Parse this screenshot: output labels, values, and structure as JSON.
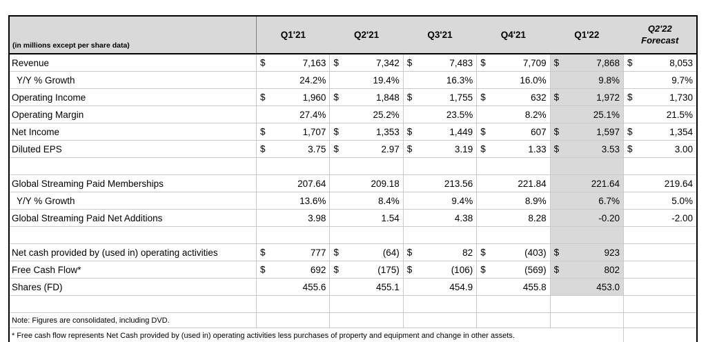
{
  "table": {
    "corner_label": "(in millions except per share data)",
    "currency_symbol": "$",
    "highlight_column_index": 4,
    "colors": {
      "header_bg": "#d9d9d9",
      "highlight_bg": "#d9d9d9",
      "grid_line": "#c9c9c9",
      "outer_border": "#000000"
    },
    "columns": [
      {
        "label": "Q1'21"
      },
      {
        "label": "Q2'21"
      },
      {
        "label": "Q3'21"
      },
      {
        "label": "Q4'21"
      },
      {
        "label": "Q1'22"
      },
      {
        "label": "Q2'22",
        "sublabel": "Forecast",
        "italic": true
      }
    ],
    "rows": [
      {
        "label": "Revenue",
        "type": "currency",
        "values": [
          "7,163",
          "7,342",
          "7,483",
          "7,709",
          "7,868",
          "8,053"
        ]
      },
      {
        "label": "Y/Y % Growth",
        "indent": true,
        "type": "plain",
        "values": [
          "24.2%",
          "19.4%",
          "16.3%",
          "16.0%",
          "9.8%",
          "9.7%"
        ]
      },
      {
        "label": "Operating Income",
        "type": "currency",
        "values": [
          "1,960",
          "1,848",
          "1,755",
          "632",
          "1,972",
          "1,730"
        ]
      },
      {
        "label": "Operating Margin",
        "type": "plain",
        "values": [
          "27.4%",
          "25.2%",
          "23.5%",
          "8.2%",
          "25.1%",
          "21.5%"
        ]
      },
      {
        "label": "Net Income",
        "type": "currency",
        "values": [
          "1,707",
          "1,353",
          "1,449",
          "607",
          "1,597",
          "1,354"
        ]
      },
      {
        "label": "Diluted EPS",
        "type": "currency",
        "values": [
          "3.75",
          "2.97",
          "3.19",
          "1.33",
          "3.53",
          "3.00"
        ]
      },
      {
        "label": "",
        "type": "blank",
        "values": [
          "",
          "",
          "",
          "",
          "",
          ""
        ]
      },
      {
        "label": "Global Streaming Paid Memberships",
        "type": "plain",
        "values": [
          "207.64",
          "209.18",
          "213.56",
          "221.84",
          "221.64",
          "219.64"
        ]
      },
      {
        "label": "Y/Y % Growth",
        "indent": true,
        "type": "plain",
        "values": [
          "13.6%",
          "8.4%",
          "9.4%",
          "8.9%",
          "6.7%",
          "5.0%"
        ]
      },
      {
        "label": "Global Streaming Paid Net Additions",
        "type": "plain",
        "values": [
          "3.98",
          "1.54",
          "4.38",
          "8.28",
          "-0.20",
          "-2.00"
        ]
      },
      {
        "label": "",
        "type": "blank",
        "values": [
          "",
          "",
          "",
          "",
          "",
          ""
        ]
      },
      {
        "label": "Net cash provided by (used in) operating activities",
        "type": "currency",
        "values": [
          "777",
          "(64)",
          "82",
          "(403)",
          "923",
          ""
        ]
      },
      {
        "label": "Free Cash Flow*",
        "type": "currency",
        "values": [
          "692",
          "(175)",
          "(106)",
          "(569)",
          "802",
          ""
        ]
      },
      {
        "label": "Shares (FD)",
        "type": "plain",
        "values": [
          "455.6",
          "455.1",
          "454.9",
          "455.8",
          "453.0",
          ""
        ]
      },
      {
        "label": "",
        "type": "blank",
        "unshaded": true,
        "values": [
          "",
          "",
          "",
          "",
          "",
          ""
        ]
      }
    ],
    "footnotes": [
      {
        "text": "Note: Figures are consolidated, including DVD."
      },
      {
        "text": "* Free cash flow represents Net Cash provided by (used in) operating activities less purchases of property and equipment and change in other assets."
      }
    ]
  }
}
